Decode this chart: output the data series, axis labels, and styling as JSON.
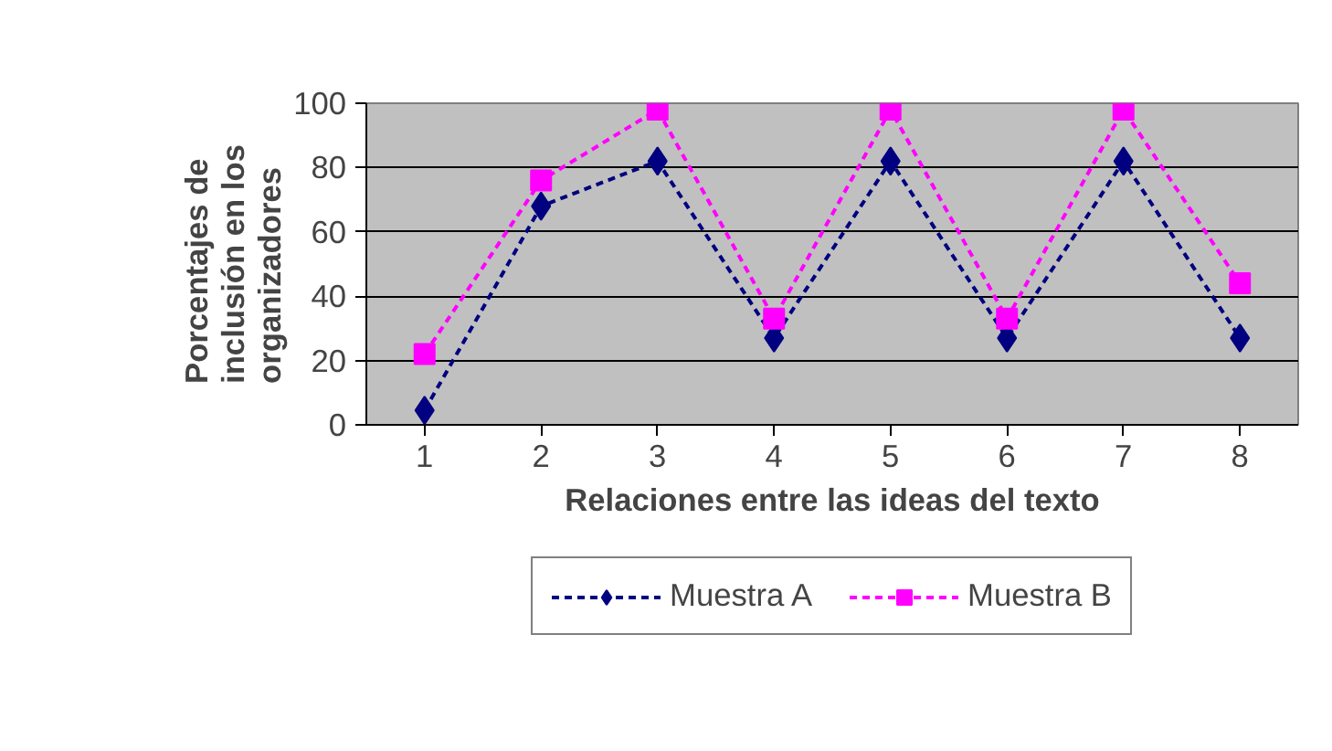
{
  "chart_data": {
    "type": "line",
    "xlabel": "Relaciones entre las ideas del texto",
    "ylabel": "Porcentajes de\ninclusión en los\norganizadores",
    "categories": [
      "1",
      "2",
      "3",
      "4",
      "5",
      "6",
      "7",
      "8"
    ],
    "series": [
      {
        "name": "Muestra A",
        "color": "#000080",
        "marker": "diamond",
        "values": [
          4.5,
          68,
          82,
          27,
          82,
          27,
          82,
          27
        ]
      },
      {
        "name": "Muestra B",
        "color": "#ff00ff",
        "marker": "square",
        "values": [
          22,
          76,
          98,
          33,
          98,
          33,
          98,
          44
        ]
      }
    ],
    "ylim": [
      0,
      100
    ],
    "yticks": [
      0,
      20,
      40,
      60,
      80,
      100
    ],
    "grid": "y",
    "legend": "bottom",
    "line_style": "dashed"
  }
}
